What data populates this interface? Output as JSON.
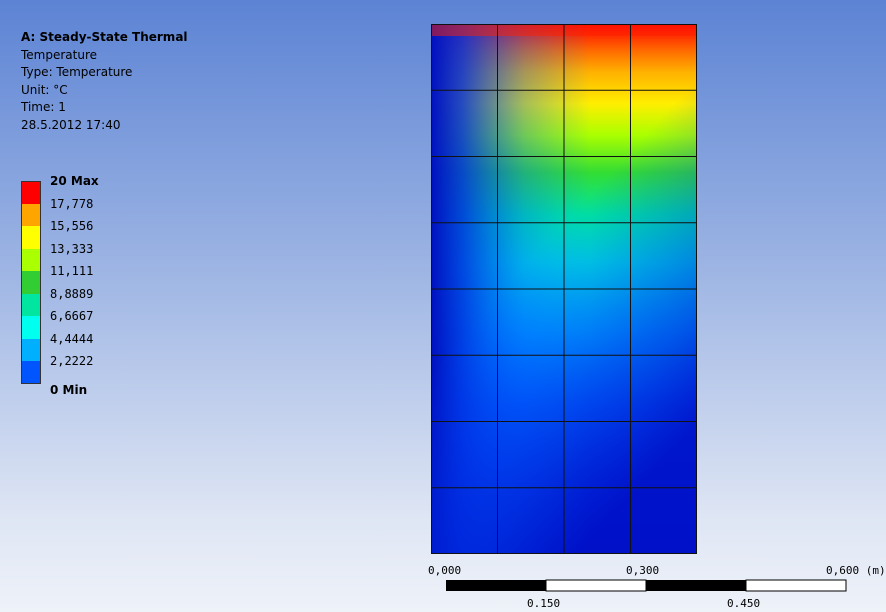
{
  "info": {
    "title": "A: Steady-State Thermal",
    "result": "Temperature",
    "type": "Type: Temperature",
    "unit": "Unit: °C",
    "time": "Time: 1",
    "date": "28.5.2012 17:40"
  },
  "legend": {
    "levels": [
      {
        "label": "20 Max",
        "color": "#ff0000"
      },
      {
        "label": "17,778",
        "color": "#ffa500"
      },
      {
        "label": "15,556",
        "color": "#ffff00"
      },
      {
        "label": "13,333",
        "color": "#aaff00"
      },
      {
        "label": "11,111",
        "color": "#32cd32"
      },
      {
        "label": "8,8889",
        "color": "#00e5a0"
      },
      {
        "label": "6,6667",
        "color": "#00ffee"
      },
      {
        "label": "4,4444",
        "color": "#00b0ff"
      },
      {
        "label": "2,2222",
        "color": "#0055ff"
      },
      {
        "label": "0 Min",
        "color": "#0000cc"
      }
    ]
  },
  "scale_bar": {
    "top_labels": [
      "0,000",
      "0,300",
      "0,600 (m)"
    ],
    "bottom_labels": [
      "0.150",
      "0.450"
    ]
  }
}
